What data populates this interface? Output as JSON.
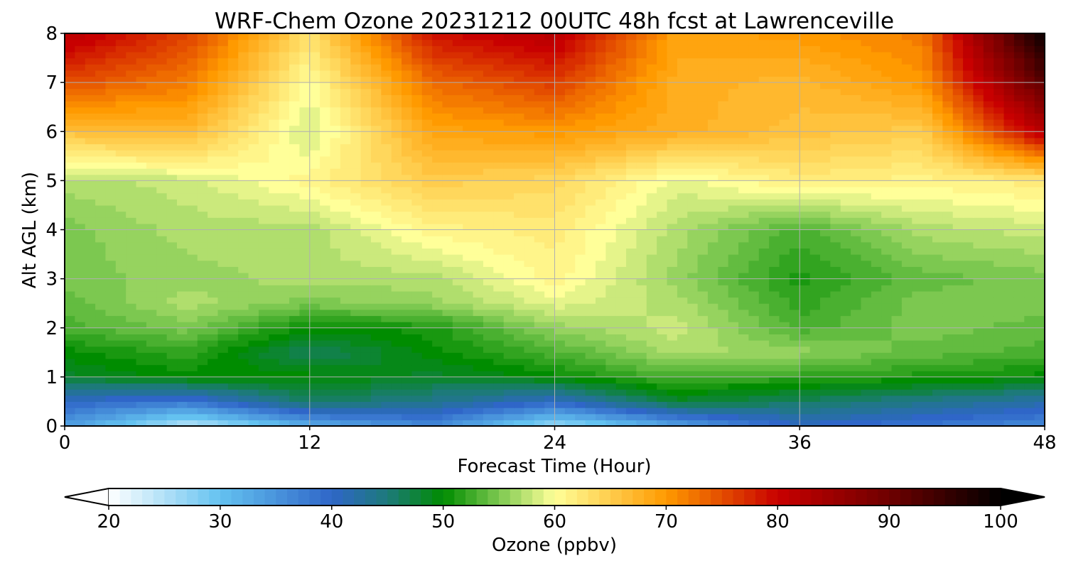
{
  "chart_data": {
    "type": "heatmap",
    "title": "WRF-Chem Ozone  20231212 00UTC 48h fcst at Lawrenceville",
    "xlabel": "Forecast Time (Hour)",
    "ylabel": "Alt AGL (km)",
    "xlim": [
      0,
      48
    ],
    "ylim": [
      0,
      8
    ],
    "xticks": [
      0,
      12,
      24,
      36,
      48
    ],
    "yticks": [
      0,
      1,
      2,
      3,
      4,
      5,
      6,
      7,
      8
    ],
    "grid": true,
    "x": [
      0,
      6,
      12,
      18,
      24,
      30,
      36,
      42,
      48
    ],
    "y": [
      0,
      0.5,
      1,
      1.5,
      2,
      2.5,
      3,
      4,
      5,
      6,
      7,
      8
    ],
    "z": [
      [
        34,
        24,
        32,
        36,
        26,
        33,
        40,
        38,
        36
      ],
      [
        40,
        38,
        46,
        44,
        40,
        48,
        46,
        44,
        42
      ],
      [
        48,
        50,
        50,
        48,
        50,
        53,
        52,
        51,
        50
      ],
      [
        50,
        52,
        46,
        50,
        53,
        57,
        56,
        54,
        53
      ],
      [
        53,
        55,
        50,
        51,
        56,
        58,
        53,
        55,
        54
      ],
      [
        54,
        57,
        55,
        56,
        59,
        57,
        52,
        55,
        55
      ],
      [
        55,
        56,
        57,
        57,
        61,
        56,
        51,
        54,
        55
      ],
      [
        55,
        57,
        57,
        61,
        62,
        57,
        53,
        57,
        58
      ],
      [
        57,
        58,
        61,
        65,
        64,
        59,
        62,
        61,
        62
      ],
      [
        66,
        67,
        58,
        69,
        70,
        68,
        66,
        65,
        82
      ],
      [
        75,
        72,
        60,
        73,
        76,
        68,
        67,
        70,
        92
      ],
      [
        82,
        76,
        63,
        79,
        82,
        69,
        70,
        72,
        100
      ]
    ],
    "colorbar": {
      "label": "Ozone  (ppbv)",
      "min": 20,
      "max": 100,
      "ticks": [
        20,
        30,
        40,
        50,
        60,
        70,
        80,
        90,
        100
      ],
      "extend": "both",
      "color_stops": [
        [
          20,
          "#ffffff"
        ],
        [
          30,
          "#64c2f0"
        ],
        [
          40,
          "#2f66c8"
        ],
        [
          45,
          "#1d7a7a"
        ],
        [
          50,
          "#008c00"
        ],
        [
          55,
          "#7cc850"
        ],
        [
          60,
          "#ffff99"
        ],
        [
          70,
          "#ff9a00"
        ],
        [
          80,
          "#c80000"
        ],
        [
          90,
          "#6e0000"
        ],
        [
          100,
          "#000000"
        ]
      ]
    }
  }
}
